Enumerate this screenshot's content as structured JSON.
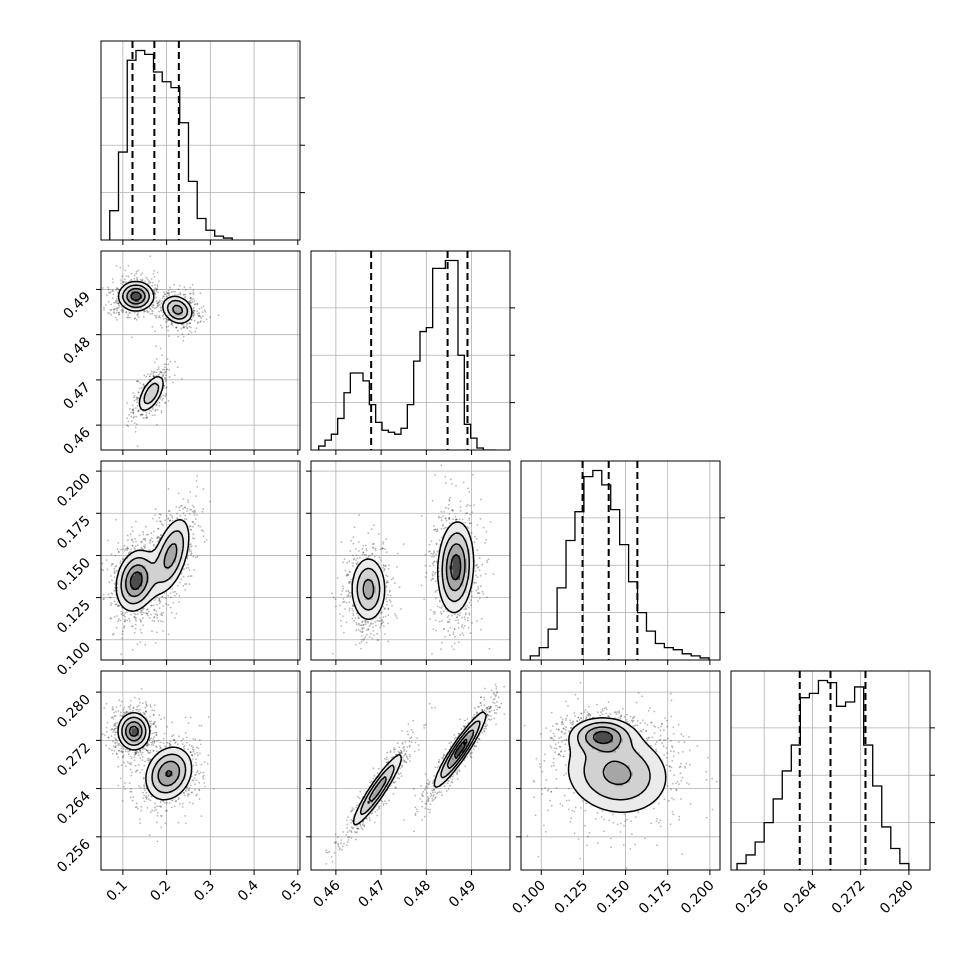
{
  "chart_data": {
    "type": "corner",
    "grid": true,
    "parameters": [
      {
        "range": [
          0.05,
          0.505
        ],
        "ticks": [
          0.1,
          0.2,
          0.3,
          0.4,
          0.5
        ],
        "tick_labels": [
          "0.1",
          "0.2",
          "0.3",
          "0.4",
          "0.5"
        ],
        "quantiles": [
          0.122,
          0.172,
          0.228
        ]
      },
      {
        "range": [
          0.4545,
          0.4985
        ],
        "ticks": [
          0.46,
          0.47,
          0.48,
          0.49
        ],
        "tick_labels": [
          "0.46",
          "0.47",
          "0.48",
          "0.49"
        ],
        "quantiles": [
          0.4678,
          0.4847,
          0.4891
        ]
      },
      {
        "range": [
          0.088,
          0.206
        ],
        "ticks": [
          0.1,
          0.125,
          0.15,
          0.175,
          0.2
        ],
        "tick_labels": [
          "0.100",
          "0.125",
          "0.150",
          "0.175",
          "0.200"
        ],
        "quantiles": [
          0.1245,
          0.14,
          0.157
        ]
      },
      {
        "range": [
          0.2505,
          0.2835
        ],
        "ticks": [
          0.256,
          0.264,
          0.272,
          0.28
        ],
        "tick_labels": [
          "0.256",
          "0.264",
          "0.272",
          "0.280"
        ],
        "quantiles": [
          0.2619,
          0.267,
          0.2728
        ]
      }
    ],
    "histograms": [
      {
        "edges": [
          0.07,
          0.09,
          0.11,
          0.13,
          0.15,
          0.17,
          0.19,
          0.21,
          0.23,
          0.25,
          0.27,
          0.29,
          0.31,
          0.33,
          0.35
        ],
        "counts": [
          0.15,
          0.45,
          0.92,
          0.97,
          0.95,
          0.86,
          0.81,
          0.78,
          0.6,
          0.3,
          0.11,
          0.05,
          0.02,
          0.01
        ]
      },
      {
        "edges": [
          0.4562,
          0.4576,
          0.459,
          0.4604,
          0.4618,
          0.4632,
          0.4646,
          0.466,
          0.4674,
          0.4688,
          0.4702,
          0.4716,
          0.473,
          0.4744,
          0.4758,
          0.4772,
          0.4786,
          0.48,
          0.4814,
          0.4828,
          0.4842,
          0.4856,
          0.487,
          0.4884,
          0.4898,
          0.4912,
          0.4926,
          0.494,
          0.4954
        ],
        "counts": [
          0.02,
          0.05,
          0.08,
          0.16,
          0.29,
          0.39,
          0.39,
          0.35,
          0.23,
          0.14,
          0.1,
          0.09,
          0.08,
          0.11,
          0.23,
          0.45,
          0.6,
          0.62,
          0.92,
          0.92,
          0.96,
          0.96,
          0.48,
          0.13,
          0.06,
          0.01,
          0.0,
          0.0
        ]
      },
      {
        "edges": [
          0.0935,
          0.0988,
          0.1041,
          0.1094,
          0.1147,
          0.12,
          0.1253,
          0.1306,
          0.1359,
          0.1412,
          0.1465,
          0.1518,
          0.1571,
          0.1624,
          0.1677,
          0.173,
          0.1783,
          0.1836,
          0.1889,
          0.1942,
          0.1995
        ],
        "counts": [
          0.02,
          0.06,
          0.15,
          0.35,
          0.58,
          0.72,
          0.89,
          0.92,
          0.85,
          0.73,
          0.56,
          0.38,
          0.23,
          0.14,
          0.08,
          0.06,
          0.05,
          0.03,
          0.02,
          0.01
        ]
      },
      {
        "edges": [
          0.2515,
          0.253,
          0.2545,
          0.256,
          0.2575,
          0.259,
          0.2605,
          0.262,
          0.2635,
          0.265,
          0.2665,
          0.268,
          0.2695,
          0.271,
          0.2725,
          0.274,
          0.2755,
          0.277,
          0.2785,
          0.28
        ],
        "counts": [
          0.03,
          0.07,
          0.13,
          0.22,
          0.33,
          0.46,
          0.58,
          0.8,
          0.82,
          0.88,
          0.87,
          0.76,
          0.78,
          0.85,
          0.58,
          0.39,
          0.2,
          0.1,
          0.03
        ]
      }
    ],
    "density_modes": [
      {
        "x": 0,
        "y": 1,
        "modes": [
          {
            "mx": 0.13,
            "my": 0.4885,
            "sx": 0.022,
            "sy": 0.0018,
            "rho": 0.0,
            "w": 1.0
          },
          {
            "mx": 0.225,
            "my": 0.4855,
            "sx": 0.02,
            "sy": 0.0018,
            "rho": -0.2,
            "w": 0.75
          },
          {
            "mx": 0.165,
            "my": 0.467,
            "sx": 0.018,
            "sy": 0.0025,
            "rho": 0.6,
            "w": 0.6
          }
        ]
      },
      {
        "x": 0,
        "y": 2,
        "modes": [
          {
            "mx": 0.13,
            "my": 0.135,
            "sx": 0.025,
            "sy": 0.01,
            "rho": 0.2,
            "w": 1.0
          },
          {
            "mx": 0.21,
            "my": 0.15,
            "sx": 0.025,
            "sy": 0.013,
            "rho": 0.5,
            "w": 0.75
          }
        ]
      },
      {
        "x": 0,
        "y": 3,
        "modes": [
          {
            "mx": 0.125,
            "my": 0.2735,
            "sx": 0.02,
            "sy": 0.0017,
            "rho": 0.0,
            "w": 1.0
          },
          {
            "mx": 0.205,
            "my": 0.2665,
            "sx": 0.03,
            "sy": 0.0025,
            "rho": 0.2,
            "w": 0.9
          }
        ]
      },
      {
        "x": 1,
        "y": 2,
        "modes": [
          {
            "mx": 0.4672,
            "my": 0.13,
            "sx": 0.0022,
            "sy": 0.011,
            "rho": 0.0,
            "w": 0.75
          },
          {
            "mx": 0.4865,
            "my": 0.143,
            "sx": 0.0022,
            "sy": 0.015,
            "rho": 0.1,
            "w": 1.0
          }
        ]
      },
      {
        "x": 1,
        "y": 3,
        "modes": [
          {
            "mx": 0.4692,
            "my": 0.2638,
            "sx": 0.0032,
            "sy": 0.0035,
            "rho": 0.93,
            "w": 0.8
          },
          {
            "mx": 0.4875,
            "my": 0.2705,
            "sx": 0.0032,
            "sy": 0.0035,
            "rho": 0.93,
            "w": 1.0
          }
        ]
      },
      {
        "x": 2,
        "y": 3,
        "modes": [
          {
            "mx": 0.136,
            "my": 0.2728,
            "sx": 0.01,
            "sy": 0.0016,
            "rho": 0.0,
            "w": 1.0
          },
          {
            "mx": 0.145,
            "my": 0.2665,
            "sx": 0.018,
            "sy": 0.004,
            "rho": -0.1,
            "w": 0.9
          }
        ]
      }
    ]
  }
}
